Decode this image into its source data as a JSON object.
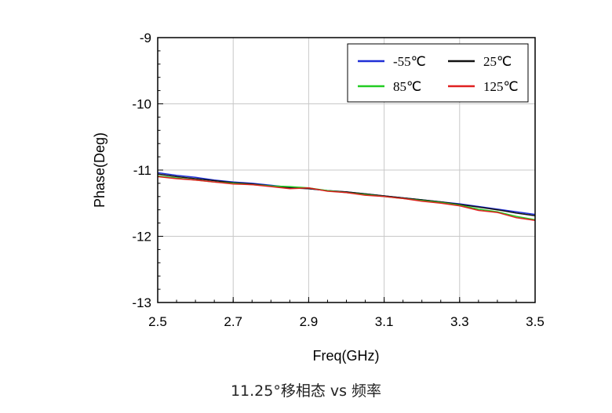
{
  "caption": "11.25°移相态 vs 频率",
  "chart_data": {
    "type": "line",
    "xlabel": "Freq(GHz)",
    "ylabel": "Phase(Deg)",
    "xlim": [
      2.5,
      3.5
    ],
    "ylim": [
      -13,
      -9
    ],
    "x_ticks": [
      "2.5",
      "2.7",
      "2.9",
      "3.1",
      "3.3",
      "3.5"
    ],
    "y_ticks": [
      "-9",
      "-10",
      "-11",
      "-12",
      "-13"
    ],
    "grid": true,
    "legend_position": "top-right",
    "x": [
      2.5,
      2.55,
      2.6,
      2.65,
      2.7,
      2.75,
      2.8,
      2.85,
      2.9,
      2.95,
      3.0,
      3.05,
      3.1,
      3.15,
      3.2,
      3.25,
      3.3,
      3.35,
      3.4,
      3.45,
      3.5
    ],
    "series": [
      {
        "name": "-55℃",
        "color": "#1f2fd6",
        "values": [
          -11.04,
          -11.08,
          -11.11,
          -11.15,
          -11.18,
          -11.2,
          -11.23,
          -11.26,
          -11.28,
          -11.31,
          -11.33,
          -11.36,
          -11.39,
          -11.42,
          -11.45,
          -11.48,
          -11.51,
          -11.55,
          -11.59,
          -11.63,
          -11.67
        ]
      },
      {
        "name": "25℃",
        "color": "#111111",
        "values": [
          -11.06,
          -11.1,
          -11.13,
          -11.16,
          -11.19,
          -11.21,
          -11.24,
          -11.27,
          -11.28,
          -11.31,
          -11.33,
          -11.36,
          -11.39,
          -11.42,
          -11.45,
          -11.48,
          -11.52,
          -11.56,
          -11.6,
          -11.65,
          -11.69
        ]
      },
      {
        "name": "85℃",
        "color": "#22cc22",
        "values": [
          -11.09,
          -11.12,
          -11.15,
          -11.18,
          -11.2,
          -11.22,
          -11.24,
          -11.25,
          -11.27,
          -11.31,
          -11.34,
          -11.37,
          -11.4,
          -11.43,
          -11.46,
          -11.49,
          -11.53,
          -11.59,
          -11.63,
          -11.7,
          -11.75
        ]
      },
      {
        "name": "125℃",
        "color": "#e02020",
        "values": [
          -11.1,
          -11.13,
          -11.15,
          -11.18,
          -11.21,
          -11.22,
          -11.25,
          -11.28,
          -11.27,
          -11.32,
          -11.34,
          -11.38,
          -11.4,
          -11.43,
          -11.47,
          -11.5,
          -11.54,
          -11.61,
          -11.64,
          -11.72,
          -11.76
        ]
      }
    ]
  }
}
